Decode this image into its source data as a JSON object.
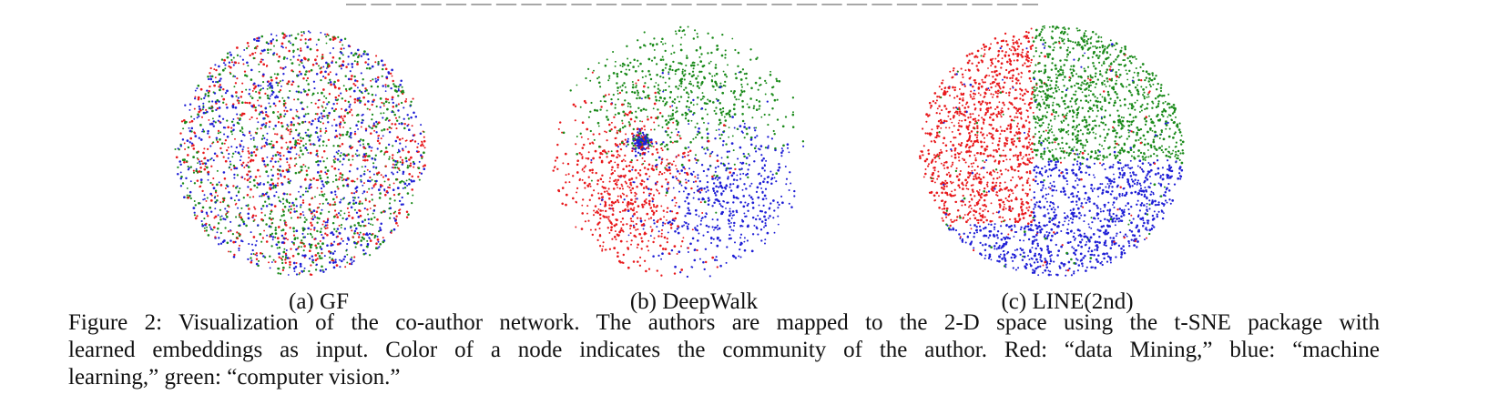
{
  "figure": {
    "caption_lines": [
      "Figure 2: Visualization of the co-author network. The authors are mapped to the 2-D space using the t-SNE package with",
      "learned embeddings as input. Color of a node indicates the community of the author. Red: “data Mining,” blue: “machine",
      "learning,” green: “computer vision.”"
    ],
    "colors": {
      "data_mining": "#e8191c",
      "machine_learning": "#1f1fd6",
      "computer_vision": "#1a8a1a"
    },
    "panels": [
      {
        "label": "(a) GF"
      },
      {
        "label": "(b) DeepWalk"
      },
      {
        "label": "(c) LINE(2nd)"
      }
    ]
  }
}
